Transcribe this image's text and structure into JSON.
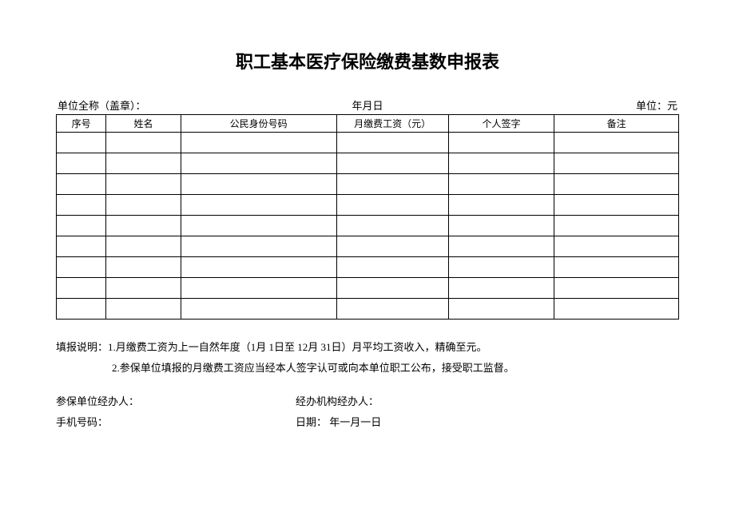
{
  "title": "职工基本医疗保险缴费基数申报表",
  "header": {
    "unit_name_label": "单位全称（盖章）：",
    "date_label": "年月日",
    "unit_label": "单位：元"
  },
  "table": {
    "columns": [
      "序号",
      "姓名",
      "公民身份号码",
      "月缴费工资（元）",
      "个人签字",
      "备注"
    ],
    "row_count": 9
  },
  "notes": {
    "line1": "填报说明：1.月缴费工资为上一自然年度（1月 1日至 12月 31日）月平均工资收入，精确至元。",
    "line2": "2.参保单位填报的月缴费工资应当经本人签字认可或向本单位职工公布，接受职工监督。"
  },
  "footer": {
    "unit_handler": "参保单位经办人：",
    "agency_handler": "经办机构经办人：",
    "phone": "手机号码：",
    "date": "日期：  年一月一日"
  }
}
